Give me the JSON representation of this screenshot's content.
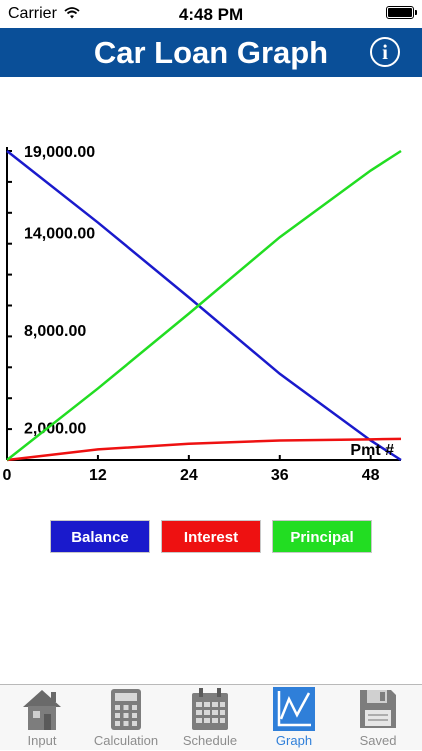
{
  "status_bar": {
    "carrier": "Carrier",
    "time": "4:48 PM"
  },
  "nav": {
    "title": "Car Loan Graph",
    "info_icon": "info-icon",
    "info_glyph": "i"
  },
  "legend": [
    {
      "label": "Balance",
      "color": "#1a1acc"
    },
    {
      "label": "Interest",
      "color": "#ee1111"
    },
    {
      "label": "Principal",
      "color": "#22dd22"
    }
  ],
  "tabs": [
    {
      "label": "Input",
      "icon": "house-icon",
      "active": false
    },
    {
      "label": "Calculation",
      "icon": "calculator-icon",
      "active": false
    },
    {
      "label": "Schedule",
      "icon": "calendar-icon",
      "active": false
    },
    {
      "label": "Graph",
      "icon": "graph-icon",
      "active": true
    },
    {
      "label": "Saved",
      "icon": "floppy-disk-icon",
      "active": false
    }
  ],
  "chart_data": {
    "type": "line",
    "xlabel": "Pmt #",
    "x_ticks": [
      0,
      12,
      24,
      36,
      48
    ],
    "xlim": [
      0,
      52
    ],
    "y_tick_labels": [
      {
        "value": 19000,
        "label": "19,000.00"
      },
      {
        "value": 14000,
        "label": "14,000.00"
      },
      {
        "value": 8000,
        "label": "8,000.00"
      },
      {
        "value": 2000,
        "label": "2,000.00"
      }
    ],
    "ylim": [
      0,
      19000
    ],
    "x": [
      0,
      12,
      24,
      36,
      48,
      52
    ],
    "series": [
      {
        "name": "Balance",
        "color": "#1a1acc",
        "values": [
          19000,
          14600,
          10000,
          5300,
          1200,
          0
        ]
      },
      {
        "name": "Interest",
        "color": "#ee1111",
        "values": [
          0,
          650,
          1000,
          1200,
          1270,
          1300
        ]
      },
      {
        "name": "Principal",
        "color": "#22dd22",
        "values": [
          0,
          4400,
          9000,
          13700,
          17800,
          19000
        ]
      }
    ]
  }
}
